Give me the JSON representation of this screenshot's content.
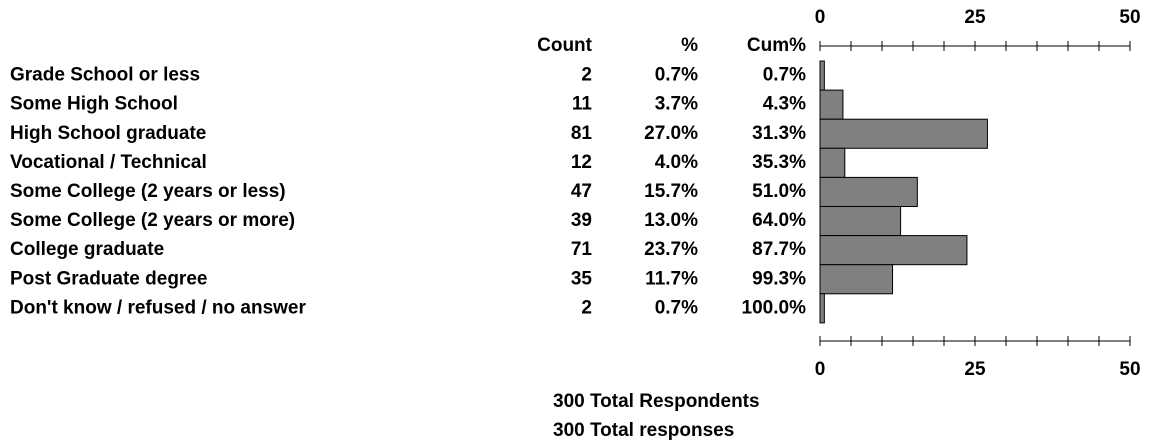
{
  "chart_data": {
    "type": "bar",
    "orientation": "horizontal",
    "column_headers": [
      "Count",
      "%",
      "Cum%"
    ],
    "categories": [
      "Grade School or less",
      "Some High School",
      "High School graduate",
      "Vocational / Technical",
      "Some College (2 years or less)",
      "Some College (2 years or more)",
      "College graduate",
      "Post Graduate degree",
      "Don't know / refused / no answer"
    ],
    "count": [
      2,
      11,
      81,
      12,
      47,
      39,
      71,
      35,
      2
    ],
    "values": [
      0.7,
      3.7,
      27.0,
      4.0,
      15.7,
      13.0,
      23.7,
      11.7,
      0.7
    ],
    "value_labels": [
      "0.7%",
      "3.7%",
      "27.0%",
      "4.0%",
      "15.7%",
      "13.0%",
      "23.7%",
      "11.7%",
      "0.7%"
    ],
    "cumulative": [
      0.7,
      4.3,
      31.3,
      35.3,
      51.0,
      64.0,
      87.7,
      99.3,
      100.0
    ],
    "cumulative_labels": [
      "0.7%",
      "4.3%",
      "31.3%",
      "35.3%",
      "51.0%",
      "64.0%",
      "87.7%",
      "99.3%",
      "100.0%"
    ],
    "color": "#808080",
    "xlim": [
      0,
      50
    ],
    "xticks": [
      0,
      25,
      50
    ],
    "minor_ticks": [
      0,
      5,
      10,
      15,
      20,
      25,
      30,
      35,
      40,
      45,
      50
    ],
    "footer": [
      "300 Total Respondents",
      "300 Total responses"
    ]
  }
}
